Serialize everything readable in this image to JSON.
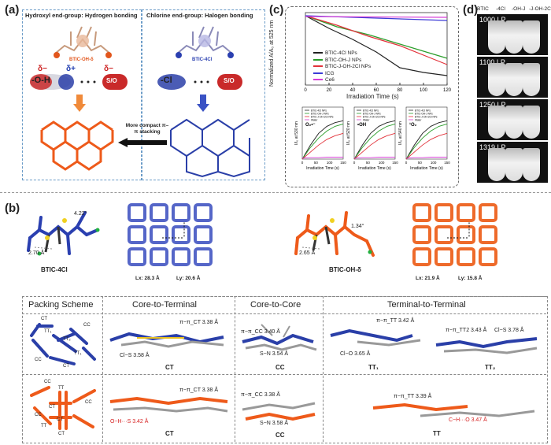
{
  "panel_a": {
    "label": "(a)",
    "left_title": "Hydroxyl end-group: Hydrogen bonding",
    "right_title": "Chlorine end-group: Halogen bonding",
    "left_molecule": "BTIC-OH-δ",
    "right_molecule": "BTIC-4Cl",
    "delta_minus_1": "δ−",
    "delta_plus": "δ+",
    "delta_minus_2": "δ−",
    "left_group": "-O-H",
    "left_acceptor": "S/O",
    "right_group": "-Cl",
    "right_acceptor": "S/O",
    "arrow_text": "More compact π–π stacking"
  },
  "panel_c": {
    "label": "(c)",
    "chart_data": {
      "type": "line",
      "ylabel": "Normalized A/A₀ at 525 nm",
      "xlabel": "Irradiation Time (s)",
      "xticks": [
        "0",
        "20",
        "40",
        "60",
        "80",
        "100",
        "120"
      ],
      "series": [
        {
          "name": "BTIC-4Cl NPs",
          "color": "#222222"
        },
        {
          "name": "BTIC-OH-J NPs",
          "color": "#2a9d2a"
        },
        {
          "name": "BTIC-J-OH-2Cl NPs",
          "color": "#e2323a"
        },
        {
          "name": "ICG",
          "color": "#3b3bd6"
        },
        {
          "name": "Ce6",
          "color": "#d63bd6"
        }
      ]
    },
    "insets": [
      {
        "ylabel": "I/I₀ at 530 nm",
        "tag": "O₂•⁻",
        "xlabel": "Irradiation Time (s)",
        "xticks": [
          "0",
          "50",
          "100",
          "150"
        ]
      },
      {
        "ylabel": "I/I₀ at 520 nm",
        "tag": "•OH",
        "xlabel": "Irradiation Time (s)",
        "xticks": [
          "0",
          "50",
          "100",
          "150"
        ]
      },
      {
        "ylabel": "I/I₀ at 540 nm",
        "tag": "¹O₂",
        "xlabel": "Irradiation Time (s)",
        "xticks": [
          "0",
          "50",
          "100",
          "150"
        ]
      }
    ],
    "inset_legend": [
      "BTIC-4Cl NPs",
      "BTIC-OH-J NPs",
      "BTIC-J-OH-2Cl NPs",
      "Water"
    ]
  },
  "panel_d": {
    "label": "(d)",
    "columns": [
      "BTIC",
      "-4Cl",
      "-OH-J",
      "-J-OH-2Cl"
    ],
    "rows": [
      "1000 LP",
      "1100 LP",
      "1250 LP",
      "1319 LP"
    ]
  },
  "panel_b": {
    "label": "(b)",
    "mol1_name": "BTIC-4Cl",
    "mol1_d1": "4.22°",
    "mol1_d2": "2.70 Å",
    "lattice1_lx": "Lx: 28.3 Å",
    "lattice1_ly": "Ly: 20.6 Å",
    "mol2_name": "BTIC-OH-δ",
    "mol2_d1": "1.34°",
    "mol2_d2": "2.65 Å",
    "lattice2_lx": "Lx: 21.9 Å",
    "lattice2_ly": "Ly: 15.8 Å",
    "headers": [
      "Packing Scheme",
      "Core-to-Terminal",
      "Core-to-Core",
      "Terminal-to-Terminal"
    ],
    "scheme_labels_top": [
      "CT",
      "CC",
      "TT₁",
      "TT₂",
      "CC",
      "TT₁",
      "CT"
    ],
    "scheme_labels_bottom": [
      "CC",
      "TT",
      "CT",
      "CC",
      "CT",
      "TT",
      "CT",
      "CC"
    ],
    "row1": {
      "ct_a": "π−π_CT 3.38 Å",
      "ct_b": "Cl−S 3.58 Å",
      "ct_tag": "CT",
      "cc_a": "π−π_CC 3.40 Å",
      "cc_b": "S−N 3.54 Å",
      "cc_tag": "CC",
      "tt1_a": "π−π_TT 3.42 Å",
      "tt1_b": "Cl−O 3.65 Å",
      "tt1_tag": "TT₁",
      "tt2_a": "π−π_TT2 3.43 Å",
      "tt2_b": "Cl−S 3.78 Å",
      "tt2_tag": "TT₂"
    },
    "row2": {
      "ct_a": "π−π_CT 3.38 Å",
      "ct_b": "O−H···S 3.42 Å",
      "ct_tag": "CT",
      "cc_a": "π−π_CC 3.38 Å",
      "cc_b": "S−N 3.58 Å",
      "cc_tag": "CC",
      "tt_a": "π−π_TT 3.39 Å",
      "tt_b": "C−H···O 3.47 Å",
      "tt_tag": "TT"
    }
  }
}
